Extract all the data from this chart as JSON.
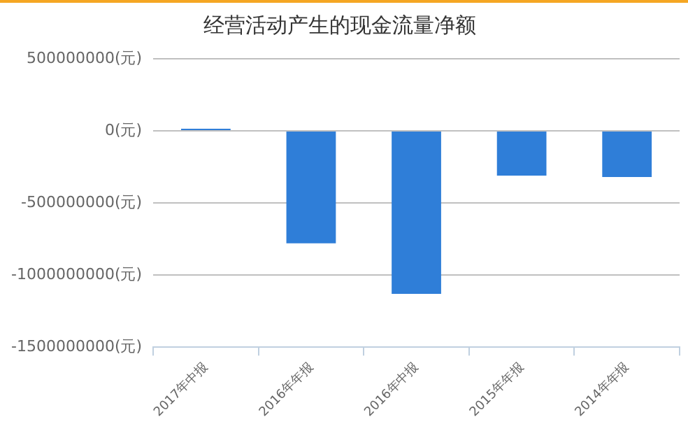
{
  "chart_data": {
    "type": "bar",
    "title": "经营活动产生的现金流量净额",
    "categories": [
      "2017年中报",
      "2016年年报",
      "2016年中报",
      "2015年年报",
      "2014年年报"
    ],
    "values": [
      15000000,
      -780000000,
      -1130000000,
      -310000000,
      -320000000
    ],
    "color": "#2f7ed8",
    "ylim": [
      -1500000000,
      500000000
    ],
    "yticks": [
      {
        "value": -1500000000,
        "label": "-1500000000(元)"
      },
      {
        "value": -1000000000,
        "label": "-1000000000(元)"
      },
      {
        "value": -500000000,
        "label": "-500000000(元)"
      },
      {
        "value": 0,
        "label": "0(元)"
      },
      {
        "value": 500000000,
        "label": "500000000(元)"
      }
    ],
    "grid": "y",
    "legend": false
  }
}
